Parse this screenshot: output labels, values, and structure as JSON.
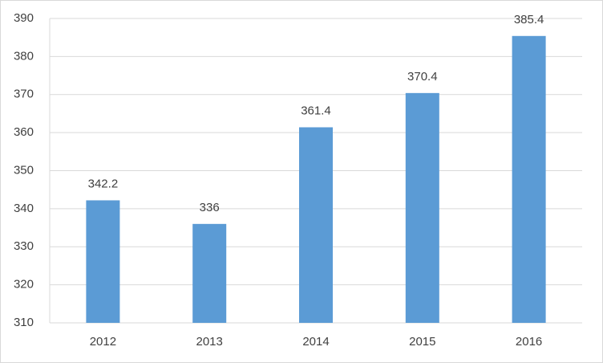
{
  "chart_data": {
    "type": "bar",
    "categories": [
      "2012",
      "2013",
      "2014",
      "2015",
      "2016"
    ],
    "values": [
      342.2,
      336,
      361.4,
      370.4,
      385.4
    ],
    "color": "#5b9bd5",
    "ylim": [
      310,
      390
    ],
    "yticks": [
      310,
      320,
      330,
      340,
      350,
      360,
      370,
      380,
      390
    ],
    "grid": true,
    "data_labels": true
  }
}
